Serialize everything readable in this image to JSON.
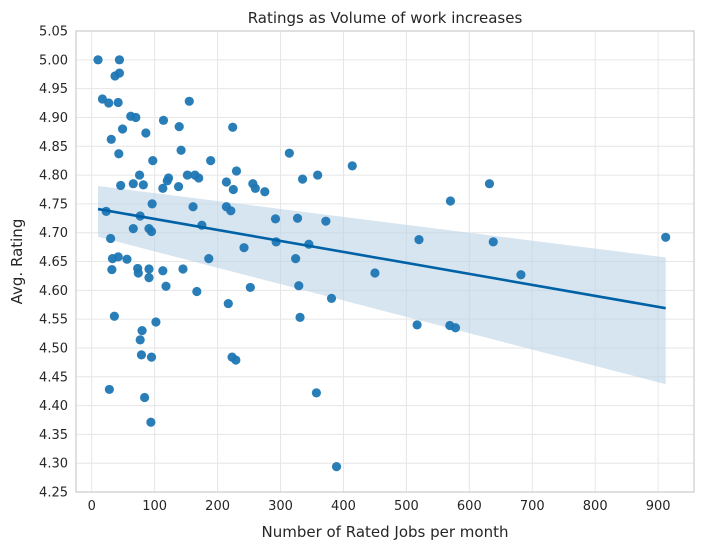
{
  "chart_data": {
    "type": "scatter",
    "title": "Ratings as Volume of work increases",
    "xlabel": "Number of Rated Jobs per month",
    "ylabel": "Avg. Rating",
    "xlim": [
      -25,
      957
    ],
    "ylim": [
      4.25,
      5.05
    ],
    "xticks": [
      0,
      100,
      200,
      300,
      400,
      500,
      600,
      700,
      800,
      900
    ],
    "xtick_labels": [
      "0",
      "100",
      "200",
      "300",
      "400",
      "500",
      "600",
      "700",
      "800",
      "900"
    ],
    "yticks": [
      4.25,
      4.3,
      4.35,
      4.4,
      4.45,
      4.5,
      4.55,
      4.6,
      4.65,
      4.7,
      4.75,
      4.8,
      4.85,
      4.9,
      4.95,
      5.0,
      5.05
    ],
    "ytick_labels": [
      "4.25",
      "4.30",
      "4.35",
      "4.40",
      "4.45",
      "4.50",
      "4.55",
      "4.60",
      "4.65",
      "4.70",
      "4.75",
      "4.80",
      "4.85",
      "4.90",
      "4.95",
      "5.00",
      "5.05"
    ],
    "grid": true,
    "colors": {
      "points": "#1f77b4",
      "line": "#0062a6",
      "band": "#bcd3e6",
      "grid": "#e6e6e6",
      "frame": "#cccccc"
    },
    "series": [
      {
        "points": [
          [
            10,
            5.0
          ],
          [
            44,
            5.0
          ],
          [
            37,
            4.972
          ],
          [
            44,
            4.977
          ],
          [
            17,
            4.932
          ],
          [
            27,
            4.925
          ],
          [
            42,
            4.926
          ],
          [
            62,
            4.902
          ],
          [
            70,
            4.9
          ],
          [
            114,
            4.895
          ],
          [
            155,
            4.928
          ],
          [
            31,
            4.862
          ],
          [
            49,
            4.88
          ],
          [
            86,
            4.873
          ],
          [
            139,
            4.884
          ],
          [
            224,
            4.883
          ],
          [
            43,
            4.837
          ],
          [
            97,
            4.825
          ],
          [
            142,
            4.843
          ],
          [
            189,
            4.825
          ],
          [
            314,
            4.838
          ],
          [
            414,
            4.816
          ],
          [
            46,
            4.782
          ],
          [
            66,
            4.785
          ],
          [
            76,
            4.8
          ],
          [
            82,
            4.783
          ],
          [
            113,
            4.777
          ],
          [
            120,
            4.79
          ],
          [
            122,
            4.795
          ],
          [
            138,
            4.78
          ],
          [
            152,
            4.8
          ],
          [
            164,
            4.8
          ],
          [
            170,
            4.795
          ],
          [
            214,
            4.788
          ],
          [
            225,
            4.775
          ],
          [
            230,
            4.807
          ],
          [
            256,
            4.785
          ],
          [
            260,
            4.777
          ],
          [
            275,
            4.771
          ],
          [
            335,
            4.793
          ],
          [
            359,
            4.8
          ],
          [
            632,
            4.785
          ],
          [
            23,
            4.737
          ],
          [
            77,
            4.729
          ],
          [
            96,
            4.75
          ],
          [
            161,
            4.745
          ],
          [
            175,
            4.713
          ],
          [
            214,
            4.745
          ],
          [
            221,
            4.738
          ],
          [
            292,
            4.724
          ],
          [
            327,
            4.725
          ],
          [
            372,
            4.72
          ],
          [
            570,
            4.755
          ],
          [
            30,
            4.69
          ],
          [
            66,
            4.707
          ],
          [
            91,
            4.707
          ],
          [
            95,
            4.702
          ],
          [
            242,
            4.674
          ],
          [
            293,
            4.684
          ],
          [
            345,
            4.68
          ],
          [
            520,
            4.688
          ],
          [
            638,
            4.684
          ],
          [
            912,
            4.692
          ],
          [
            33,
            4.655
          ],
          [
            42,
            4.658
          ],
          [
            56,
            4.654
          ],
          [
            32,
            4.636
          ],
          [
            73,
            4.638
          ],
          [
            74,
            4.63
          ],
          [
            91,
            4.637
          ],
          [
            91,
            4.622
          ],
          [
            113,
            4.634
          ],
          [
            145,
            4.637
          ],
          [
            186,
            4.655
          ],
          [
            324,
            4.655
          ],
          [
            450,
            4.63
          ],
          [
            682,
            4.627
          ],
          [
            118,
            4.607
          ],
          [
            167,
            4.598
          ],
          [
            217,
            4.577
          ],
          [
            252,
            4.605
          ],
          [
            329,
            4.608
          ],
          [
            381,
            4.586
          ],
          [
            36,
            4.555
          ],
          [
            80,
            4.53
          ],
          [
            77,
            4.514
          ],
          [
            102,
            4.545
          ],
          [
            331,
            4.553
          ],
          [
            517,
            4.54
          ],
          [
            569,
            4.539
          ],
          [
            578,
            4.535
          ],
          [
            79,
            4.488
          ],
          [
            95,
            4.484
          ],
          [
            223,
            4.484
          ],
          [
            229,
            4.479
          ],
          [
            28,
            4.428
          ],
          [
            84,
            4.414
          ],
          [
            357,
            4.422
          ],
          [
            94,
            4.371
          ],
          [
            389,
            4.294
          ]
        ]
      }
    ],
    "regression": {
      "x": [
        10,
        912
      ],
      "y": [
        4.741,
        4.569
      ],
      "ci_lower": [
        4.693,
        4.437
      ],
      "ci_upper": [
        4.781,
        4.657
      ]
    }
  }
}
